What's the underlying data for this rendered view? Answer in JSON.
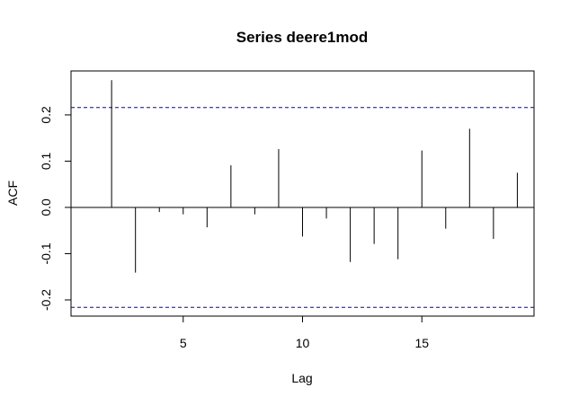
{
  "chart_data": {
    "type": "bar",
    "title": "Series deere1mod",
    "xlabel": "Lag",
    "ylabel": "ACF",
    "xlim": [
      0.3,
      19.7
    ],
    "ylim": [
      -0.235,
      0.295
    ],
    "x_ticks": [
      5,
      10,
      15
    ],
    "y_ticks": [
      -0.2,
      -0.1,
      0.0,
      0.1,
      0.2
    ],
    "y_tick_labels": [
      "-0.2",
      "-0.1",
      "0.0",
      "0.1",
      "0.2"
    ],
    "confidence_limit": 0.216,
    "confidence_line_color": "#0000cc",
    "x": [
      2,
      3,
      4,
      5,
      6,
      7,
      8,
      9,
      10,
      11,
      12,
      13,
      14,
      15,
      16,
      17,
      18,
      19
    ],
    "values": [
      0.275,
      -0.141,
      -0.01,
      -0.015,
      -0.043,
      0.091,
      -0.015,
      0.126,
      -0.063,
      -0.024,
      -0.118,
      -0.079,
      -0.112,
      0.123,
      -0.046,
      0.17,
      -0.068,
      0.075
    ],
    "grid": false
  }
}
